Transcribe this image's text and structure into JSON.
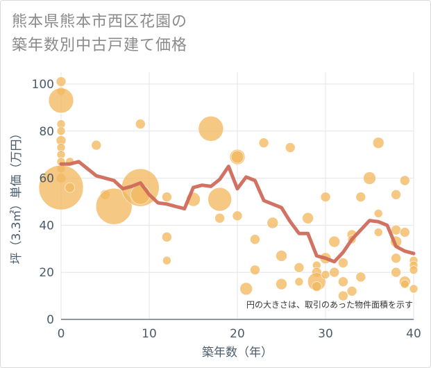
{
  "title": {
    "line1": "熊本県熊本市西区花園の",
    "line2": "築年数別中古戸建て価格"
  },
  "note": "円の大きさは、取引のあった物件面積を示す",
  "colors": {
    "bubble": "#f2b860",
    "line": "#cf6a5b",
    "grid": "#e2e6ea",
    "axis": "#4a5b6c"
  },
  "chart_data": {
    "type": "scatter",
    "xlabel": "築年数（年）",
    "ylabel": "坪（3.3㎡）単価（万円）",
    "xlim": [
      0,
      40
    ],
    "ylim": [
      0,
      105
    ],
    "xticks": [
      0,
      10,
      20,
      30,
      40
    ],
    "yticks": [
      0,
      20,
      40,
      60,
      80,
      100
    ],
    "bubbles": [
      {
        "x": 0,
        "y": 101,
        "s": 7
      },
      {
        "x": 0,
        "y": 97,
        "s": 6
      },
      {
        "x": 0,
        "y": 93,
        "s": 18
      },
      {
        "x": 0,
        "y": 83,
        "s": 6
      },
      {
        "x": 0,
        "y": 80,
        "s": 6
      },
      {
        "x": 0,
        "y": 76,
        "s": 7
      },
      {
        "x": 0,
        "y": 73,
        "s": 6
      },
      {
        "x": 0,
        "y": 70,
        "s": 6
      },
      {
        "x": 0,
        "y": 67,
        "s": 6
      },
      {
        "x": 0,
        "y": 64,
        "s": 6
      },
      {
        "x": 0,
        "y": 60,
        "s": 7
      },
      {
        "x": 0,
        "y": 56,
        "s": 32
      },
      {
        "x": 1,
        "y": 67,
        "s": 6
      },
      {
        "x": 1,
        "y": 56,
        "s": 7
      },
      {
        "x": 4,
        "y": 74,
        "s": 7
      },
      {
        "x": 5,
        "y": 53,
        "s": 7
      },
      {
        "x": 6,
        "y": 48,
        "s": 26
      },
      {
        "x": 9,
        "y": 83,
        "s": 7
      },
      {
        "x": 9,
        "y": 56,
        "s": 27
      },
      {
        "x": 9,
        "y": 53,
        "s": 14
      },
      {
        "x": 12,
        "y": 52,
        "s": 7
      },
      {
        "x": 12,
        "y": 35,
        "s": 7
      },
      {
        "x": 12,
        "y": 25,
        "s": 6
      },
      {
        "x": 15,
        "y": 51,
        "s": 10
      },
      {
        "x": 17,
        "y": 81,
        "s": 18
      },
      {
        "x": 18,
        "y": 51,
        "s": 17
      },
      {
        "x": 18,
        "y": 43,
        "s": 7
      },
      {
        "x": 20,
        "y": 69,
        "s": 11
      },
      {
        "x": 20,
        "y": 69,
        "s": 9
      },
      {
        "x": 20,
        "y": 44,
        "s": 7
      },
      {
        "x": 21,
        "y": 13,
        "s": 9
      },
      {
        "x": 22,
        "y": 34,
        "s": 7
      },
      {
        "x": 22,
        "y": 21,
        "s": 7
      },
      {
        "x": 23,
        "y": 75,
        "s": 7
      },
      {
        "x": 24,
        "y": 41,
        "s": 8
      },
      {
        "x": 25,
        "y": 27,
        "s": 8
      },
      {
        "x": 25,
        "y": 15,
        "s": 8
      },
      {
        "x": 26,
        "y": 73,
        "s": 7
      },
      {
        "x": 27,
        "y": 22,
        "s": 7
      },
      {
        "x": 27,
        "y": 16,
        "s": 6
      },
      {
        "x": 28,
        "y": 43,
        "s": 8
      },
      {
        "x": 29,
        "y": 23,
        "s": 6
      },
      {
        "x": 29,
        "y": 20,
        "s": 7
      },
      {
        "x": 29,
        "y": 16,
        "s": 13
      },
      {
        "x": 29,
        "y": 14,
        "s": 7
      },
      {
        "x": 30,
        "y": 52,
        "s": 7
      },
      {
        "x": 30,
        "y": 26,
        "s": 8
      },
      {
        "x": 30,
        "y": 19,
        "s": 6
      },
      {
        "x": 31,
        "y": 33,
        "s": 8
      },
      {
        "x": 31,
        "y": 20,
        "s": 7
      },
      {
        "x": 32,
        "y": 24,
        "s": 7
      },
      {
        "x": 32,
        "y": 16,
        "s": 7
      },
      {
        "x": 32,
        "y": 10,
        "s": 7
      },
      {
        "x": 33,
        "y": 36,
        "s": 7
      },
      {
        "x": 33,
        "y": 34,
        "s": 6
      },
      {
        "x": 33,
        "y": 12,
        "s": 7
      },
      {
        "x": 34,
        "y": 52,
        "s": 7
      },
      {
        "x": 34,
        "y": 18,
        "s": 7
      },
      {
        "x": 35,
        "y": 60,
        "s": 9
      },
      {
        "x": 36,
        "y": 75,
        "s": 8
      },
      {
        "x": 36,
        "y": 45,
        "s": 6
      },
      {
        "x": 36,
        "y": 37,
        "s": 6
      },
      {
        "x": 38,
        "y": 53,
        "s": 7
      },
      {
        "x": 38,
        "y": 38,
        "s": 7
      },
      {
        "x": 38,
        "y": 33,
        "s": 8
      },
      {
        "x": 38,
        "y": 26,
        "s": 7
      },
      {
        "x": 38,
        "y": 20,
        "s": 7
      },
      {
        "x": 39,
        "y": 59,
        "s": 7
      },
      {
        "x": 39,
        "y": 37,
        "s": 7
      },
      {
        "x": 39,
        "y": 16,
        "s": 8
      },
      {
        "x": 39,
        "y": 15,
        "s": 6
      },
      {
        "x": 40,
        "y": 25,
        "s": 6
      },
      {
        "x": 40,
        "y": 23,
        "s": 6
      },
      {
        "x": 40,
        "y": 21,
        "s": 6
      },
      {
        "x": 40,
        "y": 13,
        "s": 6
      }
    ],
    "trend": {
      "x": [
        0,
        1,
        2,
        3,
        4,
        5,
        6,
        7,
        8,
        9,
        10,
        11,
        12,
        13,
        14,
        15,
        16,
        17,
        18,
        19,
        20,
        21,
        22,
        23,
        24,
        25,
        26,
        27,
        28,
        29,
        30,
        31,
        32,
        33,
        34,
        35,
        36,
        37,
        38,
        39,
        40
      ],
      "y": [
        66,
        66,
        67,
        64,
        61,
        60,
        59,
        55.5,
        56.5,
        58,
        53,
        49.5,
        49,
        48,
        47,
        56,
        57,
        56.5,
        59.5,
        65,
        55.5,
        60.5,
        59,
        50.5,
        49,
        47.5,
        41.5,
        36.5,
        36.5,
        27,
        26,
        24.5,
        28.5,
        34,
        38,
        42,
        41.5,
        40,
        31,
        29,
        28
      ]
    }
  }
}
